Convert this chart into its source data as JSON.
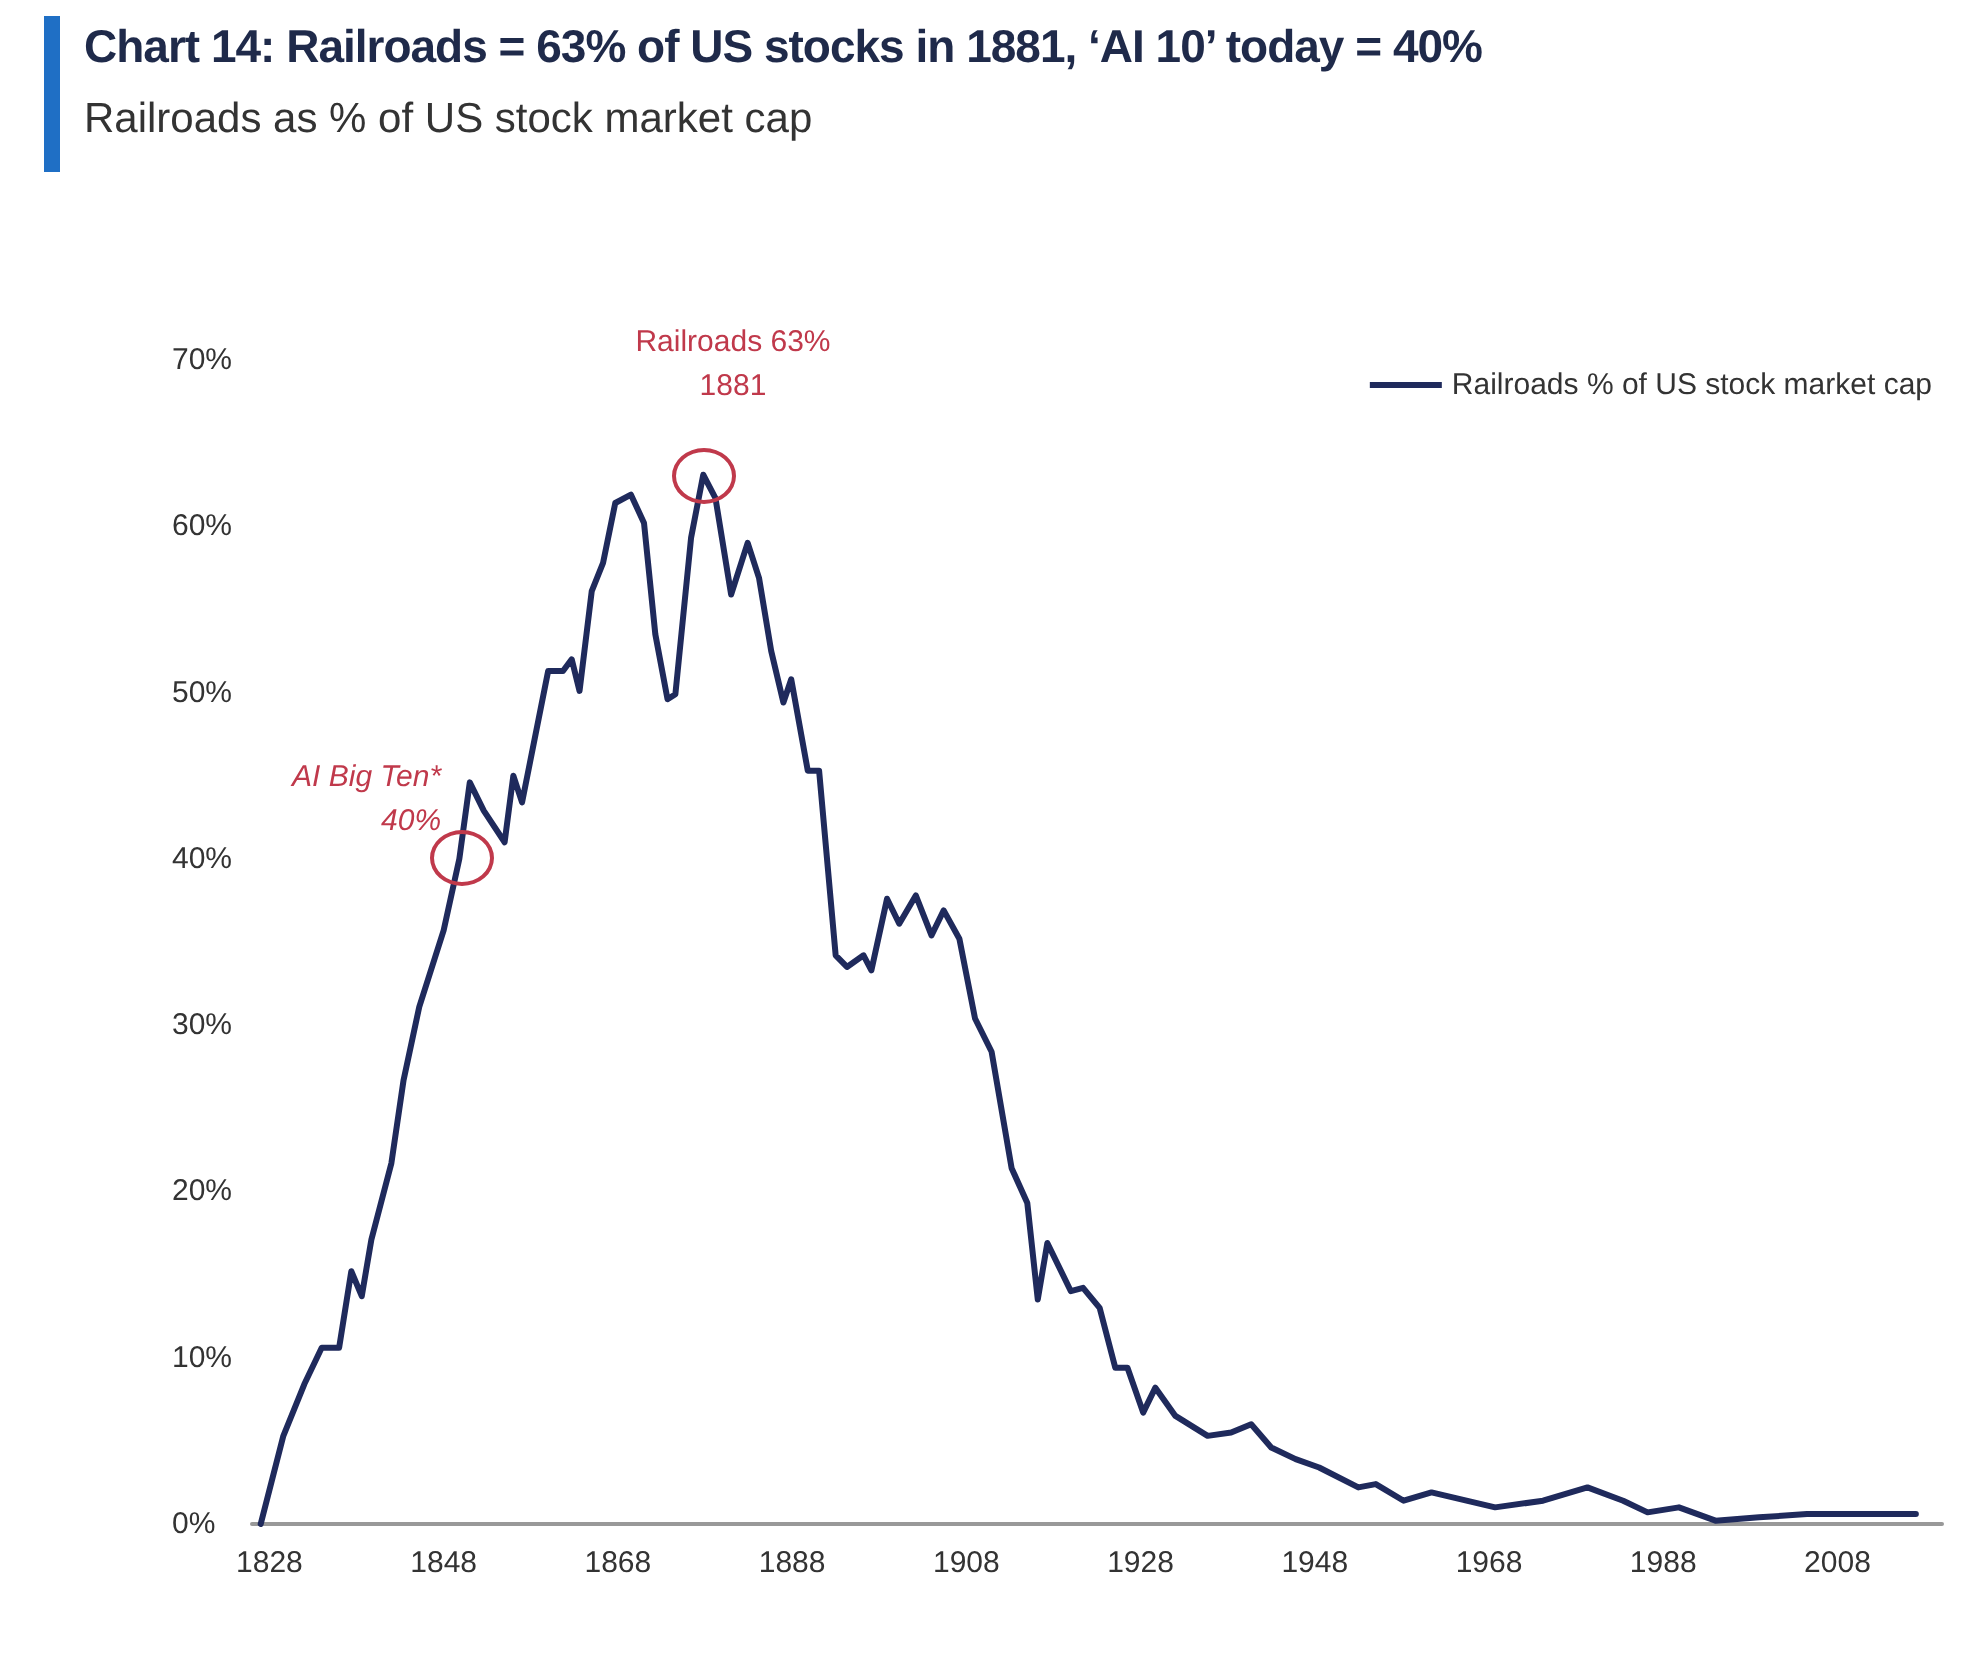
{
  "chart_data": {
    "type": "line",
    "title": "Chart 14: Railroads = 63% of US stocks in 1881, ‘AI 10’ today = 40%",
    "subtitle": "Railroads as % of US stock market cap",
    "series": [
      {
        "name": "Railroads % of US stock market cap",
        "color": "#1f2a5c",
        "x": [
          1827,
          1829.6,
          1832,
          1834,
          1836,
          1837.4,
          1838.6,
          1839.7,
          1842,
          1843.4,
          1845.2,
          1848,
          1849.8,
          1851,
          1852.6,
          1855,
          1856,
          1857,
          1860,
          1861.7,
          1862.7,
          1863.6,
          1865,
          1866.3,
          1867.7,
          1869.5,
          1871,
          1872.3,
          1873.7,
          1874.6,
          1876.4,
          1877.8,
          1879.2,
          1881,
          1882.9,
          1884.2,
          1885.6,
          1887,
          1887.9,
          1889.8,
          1891.1,
          1893,
          1894.3,
          1896.2,
          1897.1,
          1898.9,
          1900.3,
          1902.2,
          1904,
          1905.4,
          1907.2,
          1909,
          1910.9,
          1913.2,
          1915,
          1916.2,
          1917.3,
          1920,
          1921.4,
          1923.3,
          1925.1,
          1926.5,
          1928.3,
          1929.7,
          1932,
          1935.7,
          1938.4,
          1940.7,
          1943,
          1945.8,
          1948.5,
          1953,
          1955,
          1958.2,
          1961.4,
          1968.7,
          1974.2,
          1979.3,
          1983.4,
          1986.2,
          1989.8,
          1994,
          1999,
          2004.5,
          2011.9,
          2017
        ],
        "values": [
          0,
          5.3,
          8.4,
          10.6,
          10.6,
          15.2,
          13.7,
          17.1,
          21.7,
          26.7,
          31.1,
          35.7,
          40,
          44.6,
          42.9,
          41,
          45,
          43.4,
          51.3,
          51.3,
          52,
          50.1,
          56.1,
          57.8,
          61.4,
          61.9,
          60.2,
          53.5,
          49.6,
          49.9,
          59.3,
          63.1,
          61.7,
          55.9,
          59,
          56.9,
          52.5,
          49.4,
          50.8,
          45.3,
          45.3,
          34.2,
          33.5,
          34.2,
          33.3,
          37.6,
          36.1,
          37.8,
          35.4,
          36.9,
          35.2,
          30.4,
          28.4,
          21.4,
          19.3,
          13.5,
          16.9,
          14,
          14.2,
          13,
          9.4,
          9.4,
          6.7,
          8.2,
          6.5,
          5.3,
          5.5,
          6,
          4.6,
          3.9,
          3.4,
          2.2,
          2.4,
          1.4,
          1.9,
          1,
          1.4,
          2.2,
          1.4,
          0.7,
          1,
          0.2,
          0.4,
          0.6,
          0.6,
          0.6
        ]
      }
    ],
    "xlim": [
      1826,
      2020
    ],
    "xticks": [
      1828,
      1848,
      1868,
      1888,
      1908,
      1928,
      1948,
      1968,
      1988,
      2008
    ],
    "ylim": [
      0,
      70
    ],
    "yticks": [
      {
        "value": 0,
        "label": "0%"
      },
      {
        "value": 10,
        "label": "10%"
      },
      {
        "value": 20,
        "label": "20%"
      },
      {
        "value": 30,
        "label": "30%"
      },
      {
        "value": 40,
        "label": "40%"
      },
      {
        "value": 50,
        "label": "50%"
      },
      {
        "value": 60,
        "label": "60%"
      },
      {
        "value": 70,
        "label": "70%"
      }
    ],
    "annotations": [
      {
        "text": "Railroads 63%\n1881",
        "x": 1878,
        "y": 63
      },
      {
        "text": "AI Big Ten*\n40%",
        "x": 1850,
        "y": 40
      }
    ],
    "grid": false,
    "legend": "top right",
    "marker": "none",
    "line_style": "solid"
  }
}
